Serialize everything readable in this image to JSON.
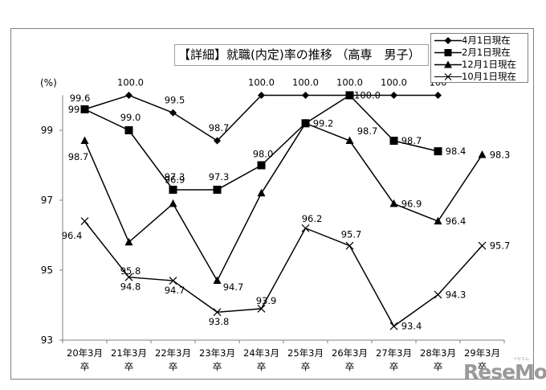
{
  "title": "【詳細】就職(内定)率の推移 （高専　男子）",
  "y_unit": "(%)",
  "legend": [
    {
      "label": "4月1日現在",
      "marker": "diamond"
    },
    {
      "label": "2月1日現在",
      "marker": "square"
    },
    {
      "label": "12月1日現在",
      "marker": "triangle"
    },
    {
      "label": "10月1日現在",
      "marker": "x"
    }
  ],
  "watermark": {
    "text": "ReseMom",
    "small": "リセマム"
  },
  "chart_data": {
    "type": "line",
    "title": "【詳細】就職(内定)率の推移 （高専　男子）",
    "xlabel": "",
    "ylabel": "(%)",
    "ylim": [
      93,
      100
    ],
    "yticks": [
      93,
      95,
      97,
      99
    ],
    "grid": false,
    "legend_position": "top-right",
    "categories": [
      "20年3月卒",
      "21年3月卒",
      "22年3月卒",
      "23年3月卒",
      "24年3月卒",
      "25年3月卒",
      "26年3月卒",
      "27年3月卒",
      "28年3月卒",
      "29年3月卒"
    ],
    "category_lines": [
      [
        "20年3月",
        "卒"
      ],
      [
        "21年3月",
        "卒"
      ],
      [
        "22年3月",
        "卒"
      ],
      [
        "23年3月",
        "卒"
      ],
      [
        "24年3月",
        "卒"
      ],
      [
        "25年3月",
        "卒"
      ],
      [
        "26年3月",
        "卒"
      ],
      [
        "27年3月",
        "卒"
      ],
      [
        "28年3月",
        "卒"
      ],
      [
        "29年3月",
        "卒"
      ]
    ],
    "series": [
      {
        "name": "4月1日現在",
        "marker": "diamond",
        "values": [
          99.6,
          100.0,
          99.5,
          98.7,
          100.0,
          100.0,
          100.0,
          100.0,
          100.0,
          null
        ],
        "labels": [
          "99.6",
          "100.0",
          "99.5",
          "98.7",
          "100.0",
          "100.0",
          "100.0",
          "100.0",
          "100",
          null
        ]
      },
      {
        "name": "2月1日現在",
        "marker": "square",
        "values": [
          99.6,
          99.0,
          97.3,
          97.3,
          98.0,
          99.2,
          100.0,
          98.7,
          98.4,
          null
        ],
        "labels": [
          "99.6",
          "99.0",
          "97.3",
          "97.3",
          "98.0",
          "99.2",
          "100.0",
          "98.7",
          "98.4",
          null
        ]
      },
      {
        "name": "12月1日現在",
        "marker": "triangle",
        "values": [
          98.7,
          95.8,
          96.9,
          94.7,
          97.2,
          99.2,
          98.7,
          96.9,
          96.4,
          98.3
        ],
        "labels": [
          "98.7",
          "95.8",
          "96.9",
          "94.7",
          null,
          null,
          "98.7",
          "96.9",
          "96.4",
          "98.3"
        ]
      },
      {
        "name": "10月1日現在",
        "marker": "x",
        "values": [
          96.4,
          94.8,
          94.7,
          93.8,
          93.9,
          96.2,
          95.7,
          93.4,
          94.3,
          95.7
        ],
        "labels": [
          "96.4",
          "94.8",
          "94.7",
          "93.8",
          "93.9",
          "96.2",
          "95.7",
          "93.4",
          "94.3",
          "95.7"
        ]
      }
    ]
  }
}
